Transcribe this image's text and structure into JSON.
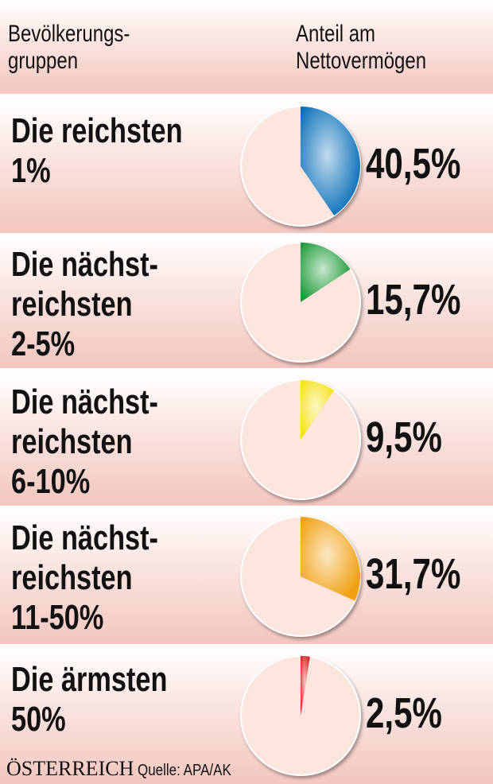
{
  "header": {
    "left": [
      "Bevölkerungs-",
      "gruppen"
    ],
    "right": [
      "Anteil am",
      "Nettovermögen"
    ]
  },
  "chart_data": {
    "type": "pie",
    "title": "Anteil am Nettovermögen",
    "categories": [
      "Die reichsten 1%",
      "Die nächstreichsten 2-5%",
      "Die nächstreichsten 6-10%",
      "Die nächstreichsten 11-50%",
      "Die ärmsten 50%"
    ],
    "values": [
      40.5,
      15.7,
      9.5,
      31.7,
      2.5
    ],
    "value_labels": [
      "40,5%",
      "15,7%",
      "9,5%",
      "31,7%",
      "2,5%"
    ],
    "label_lines": [
      [
        "Die reichsten",
        "1%"
      ],
      [
        "Die nächst-",
        "reichsten",
        "2-5%"
      ],
      [
        "Die nächst-",
        "reichsten",
        "6-10%"
      ],
      [
        "Die nächst-",
        "reichsten",
        "11-50%"
      ],
      [
        "Die ärmsten",
        "50%"
      ]
    ],
    "colors": [
      "#0a6fb8",
      "#1e9a3a",
      "#f4e21a",
      "#f0a012",
      "#d81e1e"
    ],
    "rest_color": "#fbe5dc"
  },
  "footer": {
    "brand": "ÖSTERREICH",
    "source": "Quelle: APA/AK"
  }
}
